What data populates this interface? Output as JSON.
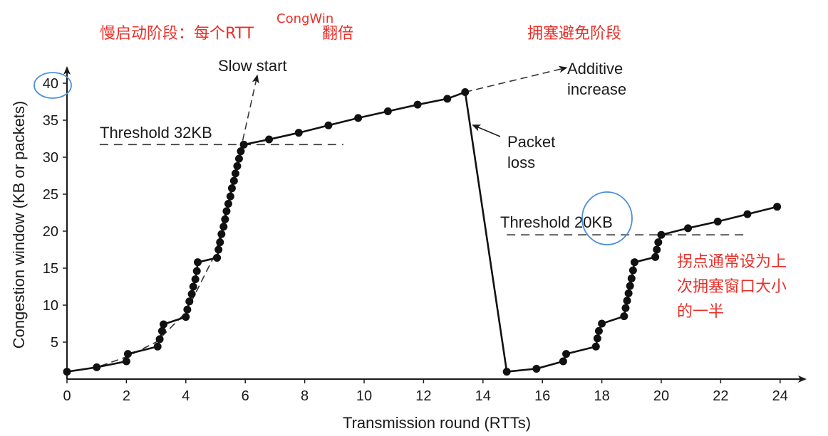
{
  "chart_data": {
    "type": "line",
    "xlabel": "Transmission round (RTTs)",
    "ylabel": "Congestion window (KB or packets)",
    "xlim": [
      0,
      25
    ],
    "ylim": [
      0,
      42
    ],
    "x_ticks": [
      0,
      2,
      4,
      6,
      8,
      10,
      12,
      14,
      16,
      18,
      20,
      22,
      24
    ],
    "y_ticks": [
      5,
      10,
      15,
      20,
      25,
      30,
      35,
      40
    ],
    "grid": false,
    "series": [
      {
        "style": "solid-with-dots",
        "points": [
          [
            0,
            1
          ],
          [
            1,
            1.6
          ],
          [
            2,
            2.4
          ],
          [
            2.05,
            3.4
          ],
          [
            3.05,
            4.4
          ],
          [
            3.12,
            5.4
          ],
          [
            3.2,
            6.5
          ],
          [
            3.25,
            7.4
          ],
          [
            4,
            8.4
          ],
          [
            4.05,
            9.4
          ],
          [
            4.12,
            10.5
          ],
          [
            4.2,
            11.5
          ],
          [
            4.25,
            12.5
          ],
          [
            4.32,
            13.5
          ],
          [
            4.37,
            14.6
          ],
          [
            4.4,
            15.8
          ],
          [
            5.05,
            16.4
          ],
          [
            5.1,
            17.5
          ],
          [
            5.15,
            18.5
          ],
          [
            5.2,
            19.6
          ],
          [
            5.27,
            20.6
          ],
          [
            5.32,
            21.6
          ],
          [
            5.37,
            22.7
          ],
          [
            5.43,
            23.7
          ],
          [
            5.5,
            24.7
          ],
          [
            5.55,
            25.8
          ],
          [
            5.62,
            26.8
          ],
          [
            5.67,
            27.8
          ],
          [
            5.73,
            28.8
          ],
          [
            5.79,
            29.8
          ],
          [
            5.85,
            30.8
          ],
          [
            5.95,
            31.7
          ],
          [
            6.8,
            32.4
          ],
          [
            7.8,
            33.3
          ],
          [
            8.8,
            34.3
          ],
          [
            9.8,
            35.3
          ],
          [
            10.8,
            36.2
          ],
          [
            11.8,
            37.1
          ],
          [
            12.8,
            37.9
          ],
          [
            13.4,
            38.8
          ],
          [
            14.8,
            1
          ],
          [
            15.8,
            1.4
          ],
          [
            16.7,
            2.4
          ],
          [
            16.8,
            3.4
          ],
          [
            17.8,
            4.4
          ],
          [
            17.85,
            5.5
          ],
          [
            17.9,
            6.5
          ],
          [
            18.0,
            7.5
          ],
          [
            18.75,
            8.5
          ],
          [
            18.8,
            9.6
          ],
          [
            18.85,
            10.6
          ],
          [
            18.9,
            11.6
          ],
          [
            18.95,
            12.6
          ],
          [
            19.0,
            13.6
          ],
          [
            19.05,
            14.7
          ],
          [
            19.1,
            15.8
          ],
          [
            19.8,
            16.5
          ],
          [
            19.85,
            17.5
          ],
          [
            19.9,
            18.5
          ],
          [
            20.0,
            19.5
          ],
          [
            20.9,
            20.4
          ],
          [
            21.9,
            21.3
          ],
          [
            22.9,
            22.3
          ],
          [
            23.9,
            23.3
          ]
        ]
      },
      {
        "name": "Slow start",
        "style": "dashed",
        "points": [
          [
            0,
            1
          ],
          [
            1,
            1.6
          ],
          [
            2,
            3
          ],
          [
            3,
            5
          ],
          [
            4,
            9
          ],
          [
            5,
            17
          ],
          [
            5.9,
            32
          ],
          [
            6.4,
            41
          ]
        ]
      },
      {
        "name": "Additive increase",
        "style": "dashed-arrow",
        "points": [
          [
            13.4,
            38.8
          ],
          [
            16.8,
            42.1
          ]
        ]
      }
    ],
    "thresholds": [
      {
        "label": "Threshold 32KB",
        "value": 31.7,
        "x_range": [
          1.1,
          9.3
        ]
      },
      {
        "label": "Threshold 20KB",
        "value": 19.5,
        "x_range": [
          14.8,
          22.9
        ]
      }
    ],
    "annotations": {
      "slow_start": "Slow start",
      "additive_1": "Additive",
      "additive_2": "increase",
      "packet_1": "Packet",
      "packet_2": "loss",
      "threshold_32": "Threshold 32KB",
      "threshold_20_prefix": "Threshold ",
      "threshold_20_value": "20KB",
      "cn_slow_start": "慢启动阶段：每个RTT",
      "cn_double": "翻倍",
      "cn_congwin": "CongWin",
      "cn_avoidance": "拥塞避免阶段",
      "cn_note_1": "拐点通常设为上",
      "cn_note_2": "次拥塞窗口大小",
      "cn_note_3": "的一半"
    },
    "colors": {
      "line": "#111111",
      "annotation_red": "#e8302a",
      "highlight_circle": "#4a90d9"
    }
  }
}
